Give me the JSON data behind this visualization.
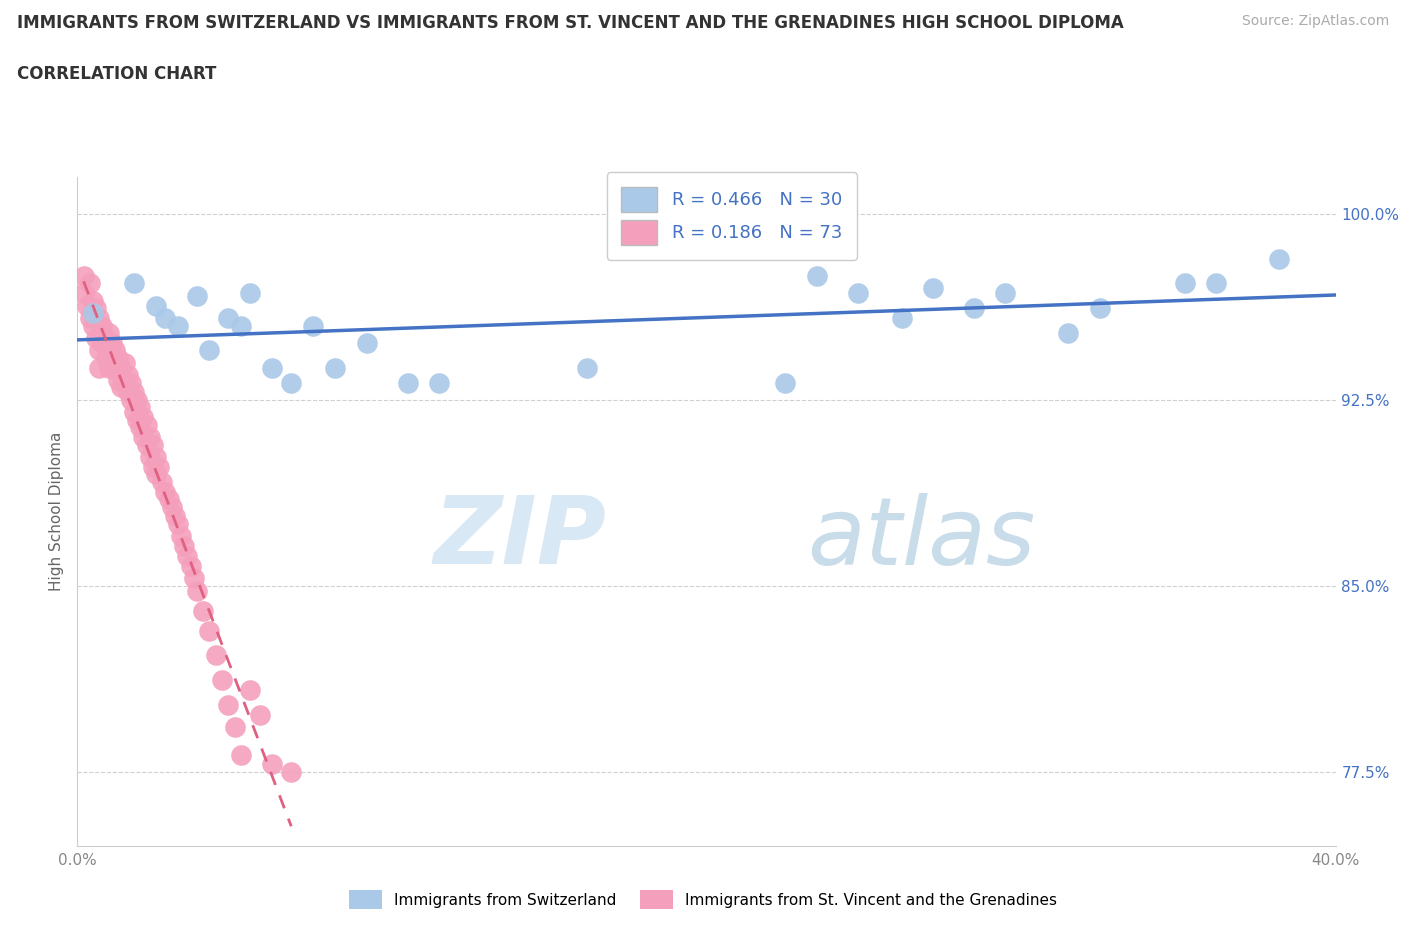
{
  "title_line1": "IMMIGRANTS FROM SWITZERLAND VS IMMIGRANTS FROM ST. VINCENT AND THE GRENADINES HIGH SCHOOL DIPLOMA",
  "title_line2": "CORRELATION CHART",
  "source_text": "Source: ZipAtlas.com",
  "ylabel": "High School Diploma",
  "xlim": [
    0.0,
    0.4
  ],
  "ylim": [
    0.745,
    1.015
  ],
  "swiss_R": "0.466",
  "swiss_N": "30",
  "svg_R": "0.186",
  "svg_N": "73",
  "swiss_color": "#aac8e8",
  "svg_color": "#f4a0bc",
  "trendline_swiss_color": "#4472c4",
  "trendline_svg_color": "#e06080",
  "legend_label_swiss": "Immigrants from Switzerland",
  "legend_label_svg": "Immigrants from St. Vincent and the Grenadines",
  "ytick_positions": [
    0.775,
    0.85,
    0.925,
    1.0
  ],
  "ytick_labels": [
    "77.5%",
    "85.0%",
    "92.5%",
    "100.0%"
  ],
  "swiss_x": [
    0.005,
    0.018,
    0.025,
    0.028,
    0.032,
    0.038,
    0.042,
    0.048,
    0.052,
    0.055,
    0.062,
    0.068,
    0.075,
    0.082,
    0.092,
    0.105,
    0.115,
    0.162,
    0.225,
    0.235,
    0.248,
    0.262,
    0.272,
    0.285,
    0.295,
    0.315,
    0.325,
    0.352,
    0.362,
    0.382
  ],
  "swiss_y": [
    0.96,
    0.972,
    0.963,
    0.958,
    0.955,
    0.967,
    0.945,
    0.958,
    0.955,
    0.968,
    0.938,
    0.932,
    0.955,
    0.938,
    0.948,
    0.932,
    0.932,
    0.938,
    0.932,
    0.975,
    0.968,
    0.958,
    0.97,
    0.962,
    0.968,
    0.952,
    0.962,
    0.972,
    0.972,
    0.982
  ],
  "svg_x": [
    0.002,
    0.002,
    0.003,
    0.004,
    0.004,
    0.005,
    0.005,
    0.006,
    0.006,
    0.007,
    0.007,
    0.007,
    0.008,
    0.008,
    0.009,
    0.009,
    0.01,
    0.01,
    0.01,
    0.011,
    0.011,
    0.012,
    0.012,
    0.013,
    0.013,
    0.014,
    0.014,
    0.015,
    0.015,
    0.016,
    0.016,
    0.017,
    0.017,
    0.018,
    0.018,
    0.019,
    0.019,
    0.02,
    0.02,
    0.021,
    0.021,
    0.022,
    0.022,
    0.023,
    0.023,
    0.024,
    0.024,
    0.025,
    0.025,
    0.026,
    0.027,
    0.028,
    0.029,
    0.03,
    0.031,
    0.032,
    0.033,
    0.034,
    0.035,
    0.036,
    0.037,
    0.038,
    0.04,
    0.042,
    0.044,
    0.046,
    0.048,
    0.05,
    0.052,
    0.055,
    0.058,
    0.062,
    0.068
  ],
  "svg_y": [
    0.975,
    0.968,
    0.963,
    0.972,
    0.958,
    0.965,
    0.955,
    0.962,
    0.95,
    0.958,
    0.945,
    0.938,
    0.955,
    0.948,
    0.95,
    0.942,
    0.952,
    0.945,
    0.938,
    0.948,
    0.94,
    0.945,
    0.937,
    0.942,
    0.933,
    0.938,
    0.93,
    0.94,
    0.932,
    0.935,
    0.928,
    0.932,
    0.925,
    0.928,
    0.92,
    0.925,
    0.917,
    0.922,
    0.914,
    0.918,
    0.91,
    0.915,
    0.907,
    0.91,
    0.902,
    0.907,
    0.898,
    0.902,
    0.895,
    0.898,
    0.892,
    0.888,
    0.885,
    0.882,
    0.878,
    0.875,
    0.87,
    0.866,
    0.862,
    0.858,
    0.853,
    0.848,
    0.84,
    0.832,
    0.822,
    0.812,
    0.802,
    0.793,
    0.782,
    0.808,
    0.798,
    0.778,
    0.775
  ]
}
